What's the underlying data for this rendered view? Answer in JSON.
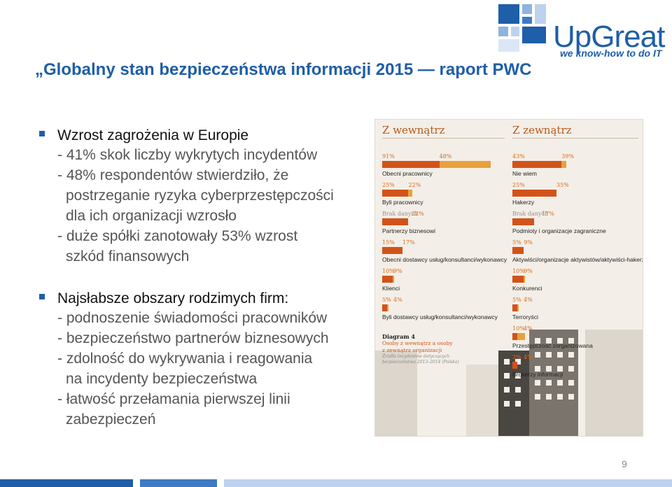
{
  "brand": {
    "name": "UpGreat",
    "tagline": "we know-how to do IT",
    "colors": {
      "primary": "#1f5ea8",
      "accent_orange": "#d2531a",
      "accent_light": "#e8a13c"
    }
  },
  "title": "„Globalny stan bezpieczeństwa informacji 2015 — raport PWC",
  "bullets": [
    {
      "heading": "Wzrost zagrożenia w Europie",
      "lines": [
        "- 41% skok liczby wykrytych incydentów",
        "- 48% respondentów stwierdziło, że",
        "postrzeganie ryzyka cyberprzestępczości",
        "dla ich organizacji wzrosło",
        "- duże spółki zanotowały 53% wzrost",
        "szkód finansowych"
      ]
    },
    {
      "heading": "Najsłabsze obszary rodzimych firm:",
      "lines": [
        "- podnoszenie świadomości pracowników",
        "- bezpieczeństwo partnerów biznesowych",
        "- zdolność do wykrywania i reagowania",
        "na incydenty bezpieczeństwa",
        "- łatwość przełamania pierwszej linii",
        "zabezpieczeń"
      ]
    }
  ],
  "infographic": {
    "left_title": "Z wewnątrz",
    "right_title": "Z zewnątrz",
    "left": [
      {
        "label": "Obecni pracownicy",
        "p1": "91%",
        "p2": "48%",
        "v1": 91,
        "v2": 48
      },
      {
        "label": "Byli pracownicy",
        "p1": "25%",
        "p2": "22%",
        "v1": 25,
        "v2": 22
      },
      {
        "label": "Partnerzy biznesowi",
        "p1": "Brak danych",
        "p2": "22%",
        "v1": 0,
        "v2": 22
      },
      {
        "label": "Obecni dostawcy usług/konsultanci/wykonawcy",
        "p1": "15%",
        "p2": "17%",
        "v1": 15,
        "v2": 17
      },
      {
        "label": "Klienci",
        "p1": "10%",
        "p2": "9%",
        "v1": 10,
        "v2": 9
      },
      {
        "label": "Byli dostawcy usług/konsultanci/wykonawcy",
        "p1": "5%",
        "p2": "4%",
        "v1": 5,
        "v2": 4
      }
    ],
    "right": [
      {
        "label": "Nie wiem",
        "p1": "43%",
        "p2": "39%",
        "v1": 43,
        "v2": 39
      },
      {
        "label": "Hakerzy",
        "p1": "25%",
        "p2": "35%",
        "v1": 25,
        "v2": 35
      },
      {
        "label": "Podmioty i organizacje zagraniczne",
        "p1": "Brak danych",
        "p2": "17%",
        "v1": 0,
        "v2": 17
      },
      {
        "label": "Aktywiści/organizacje aktywistów/aktywiści-hakerzy",
        "p1": "5%",
        "p2": "9%",
        "v1": 5,
        "v2": 9
      },
      {
        "label": "Konkurenci",
        "p1": "10%",
        "p2": "9%",
        "v1": 10,
        "v2": 9
      },
      {
        "label": "Terroryści",
        "p1": "5%",
        "p2": "4%",
        "v1": 5,
        "v2": 4
      },
      {
        "label": "Przestępczość zorganizowana",
        "p1": "10%",
        "p2": "4%",
        "v1": 10,
        "v2": 4
      },
      {
        "label": "Brokerzy informacji",
        "p1": "3%",
        "p2": "4%",
        "v1": 3,
        "v2": 4
      }
    ],
    "diagram": {
      "number": "Diagram 4",
      "subtitle1": "Osoby z wewnątrz a osoby",
      "subtitle2": "z zewnątrz organizacji",
      "source1": "Źródła incydentów dotyczących",
      "source2": "bezpieczeństwa 2013–2014 (Polska)"
    }
  },
  "page_number": "9"
}
